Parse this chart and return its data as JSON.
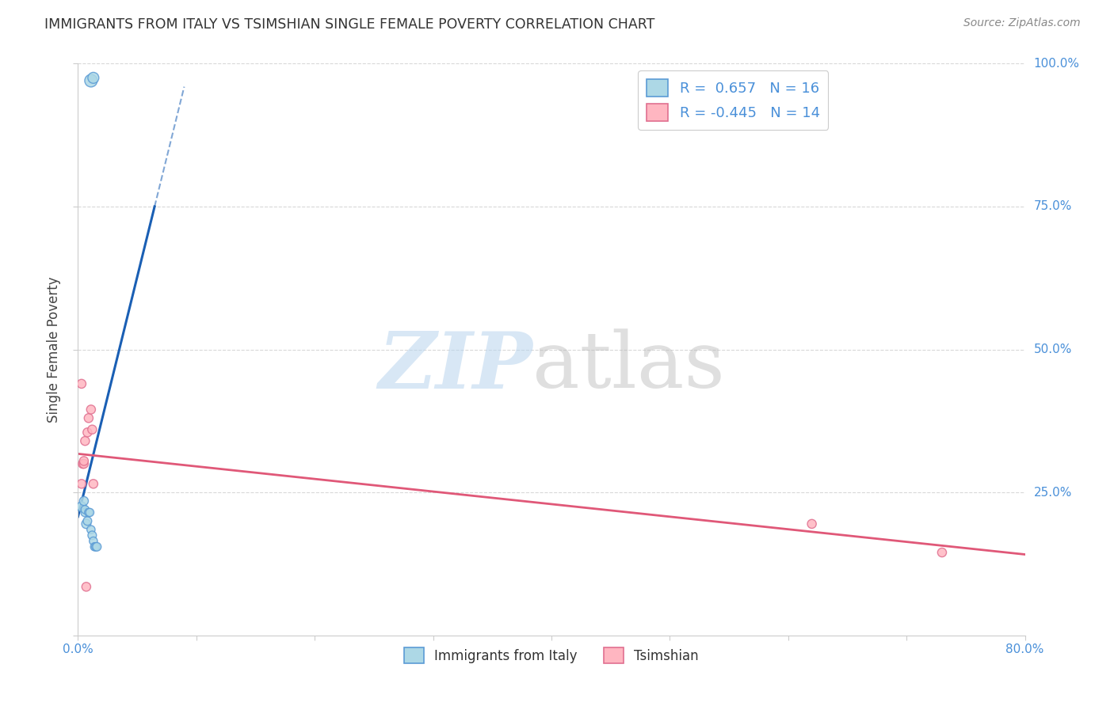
{
  "title": "IMMIGRANTS FROM ITALY VS TSIMSHIAN SINGLE FEMALE POVERTY CORRELATION CHART",
  "source": "Source: ZipAtlas.com",
  "ylabel": "Single Female Poverty",
  "xmin": 0.0,
  "xmax": 0.8,
  "ymin": 0.0,
  "ymax": 1.0,
  "italy_scatter_x": [
    0.003,
    0.005,
    0.006,
    0.006,
    0.007,
    0.008,
    0.009,
    0.01,
    0.011,
    0.012,
    0.013,
    0.014,
    0.015,
    0.016,
    0.011,
    0.013
  ],
  "italy_scatter_y": [
    0.225,
    0.235,
    0.215,
    0.22,
    0.195,
    0.2,
    0.215,
    0.215,
    0.185,
    0.175,
    0.165,
    0.155,
    0.155,
    0.155,
    0.97,
    0.975
  ],
  "italy_scatter_size": [
    80,
    65,
    60,
    55,
    70,
    60,
    55,
    55,
    55,
    60,
    55,
    55,
    55,
    60,
    130,
    100
  ],
  "tsimshian_scatter_x": [
    0.003,
    0.004,
    0.005,
    0.006,
    0.008,
    0.009,
    0.011,
    0.012,
    0.013,
    0.62,
    0.73,
    0.003,
    0.005,
    0.007
  ],
  "tsimshian_scatter_y": [
    0.44,
    0.3,
    0.3,
    0.34,
    0.355,
    0.38,
    0.395,
    0.36,
    0.265,
    0.195,
    0.145,
    0.265,
    0.305,
    0.085
  ],
  "tsimshian_scatter_size": [
    65,
    65,
    65,
    65,
    65,
    65,
    65,
    65,
    65,
    65,
    65,
    65,
    65,
    65
  ],
  "italy_color": "#add8e6",
  "italy_edge_color": "#5b9bd5",
  "tsimshian_color": "#ffb6c1",
  "tsimshian_edge_color": "#e07090",
  "italy_line_color": "#1a5fb4",
  "tsimshian_line_color": "#e05878",
  "italy_R": "0.657",
  "italy_N": "16",
  "tsimshian_R": "-0.445",
  "tsimshian_N": "14",
  "legend_label_italy": "Immigrants from Italy",
  "legend_label_tsimshian": "Tsimshian",
  "grid_color": "#d8d8d8",
  "background_color": "#ffffff",
  "title_color": "#333333",
  "axis_tick_color": "#4a90d9",
  "source_color": "#888888"
}
